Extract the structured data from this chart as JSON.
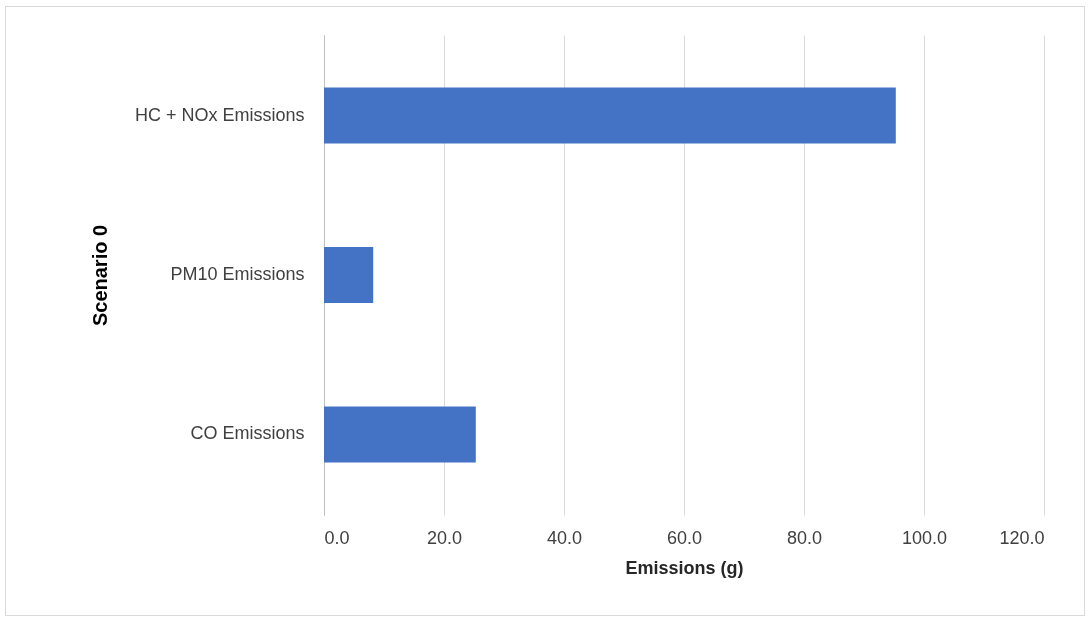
{
  "chart_data": {
    "type": "bar",
    "orientation": "horizontal",
    "xlabel": "Emissions (g)",
    "ylabel": "Scenario 0",
    "categories": [
      "HC + NOx Emissions",
      "PM10 Emissions",
      "CO Emissions"
    ],
    "values": [
      95.3,
      8.2,
      25.3
    ],
    "color": "#4472c4",
    "xlim": [
      0,
      120
    ],
    "xticks": [
      {
        "value": 0,
        "label": "0.0"
      },
      {
        "value": 20,
        "label": "20.0"
      },
      {
        "value": 40,
        "label": "40.0"
      },
      {
        "value": 60,
        "label": "60.0"
      },
      {
        "value": 80,
        "label": "80.0"
      },
      {
        "value": 100,
        "label": "100.0"
      },
      {
        "value": 120,
        "label": "120.0"
      }
    ],
    "grid": "x",
    "legend": false
  }
}
